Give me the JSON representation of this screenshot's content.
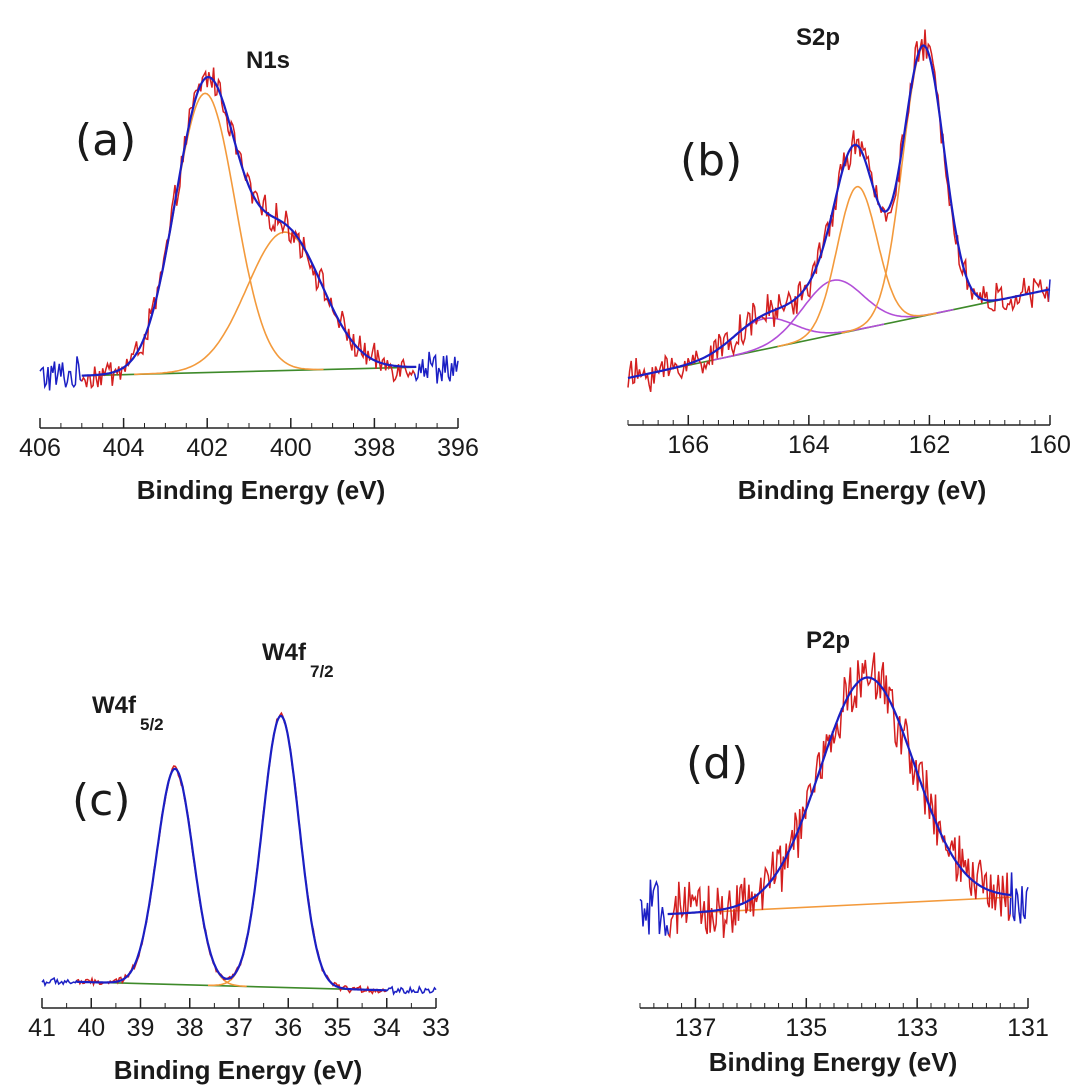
{
  "colors": {
    "data": "#d41f1f",
    "fit": "#1b1fc4",
    "component": "#f39a3c",
    "component_alt": "#b24fd8",
    "background_line": "#3e8a2a",
    "noise_outside": "#1b1fc4"
  },
  "chart_data": [
    {
      "id": "a",
      "type": "line",
      "panel_label": "(a)",
      "title": "N1s",
      "xlabel": "Binding Energy (eV)",
      "xlim": [
        406,
        396
      ],
      "reversed_x": true,
      "ticks": [
        "406",
        "404",
        "402",
        "400",
        "398",
        "396"
      ],
      "tick_values": [
        406,
        404,
        402,
        400,
        398,
        396
      ],
      "fit_range": [
        405,
        397
      ],
      "background": {
        "start": 1.0,
        "end": 1.35
      },
      "components": [
        {
          "center": 402.05,
          "height": 11.5,
          "sigma": 0.72,
          "color": "component"
        },
        {
          "center": 400.15,
          "height": 5.7,
          "sigma": 0.9,
          "color": "component"
        }
      ],
      "noise": 0.55,
      "ylim": [
        0,
        14
      ]
    },
    {
      "id": "b",
      "type": "line",
      "panel_label": "(b)",
      "title": "S2p",
      "xlabel": "Binding Energy (eV)",
      "xlim": [
        167,
        160
      ],
      "reversed_x": true,
      "ticks": [
        "166",
        "164",
        "162",
        "160"
      ],
      "tick_values": [
        166,
        164,
        162,
        160
      ],
      "fit_range": [
        167,
        160
      ],
      "background": {
        "start": 0.0,
        "end": 2.6
      },
      "components": [
        {
          "center": 164.75,
          "height": 0.9,
          "sigma": 0.5,
          "color": "component_alt"
        },
        {
          "center": 163.6,
          "height": 1.6,
          "sigma": 0.5,
          "color": "component_alt"
        },
        {
          "center": 163.2,
          "height": 4.2,
          "sigma": 0.33,
          "color": "component"
        },
        {
          "center": 162.1,
          "height": 7.9,
          "sigma": 0.34,
          "color": "component"
        }
      ],
      "noise": 0.45,
      "ylim": [
        -0.5,
        10.5
      ]
    },
    {
      "id": "c",
      "type": "line",
      "panel_label": "(c)",
      "title": "W4f",
      "peak_labels": [
        {
          "text": "W4f",
          "sub": "5/2"
        },
        {
          "text": "W4f",
          "sub": "7/2"
        }
      ],
      "xlabel": "Binding Energy (eV)",
      "xlim": [
        41,
        33
      ],
      "reversed_x": true,
      "ticks": [
        "41",
        "40",
        "39",
        "38",
        "37",
        "36",
        "35",
        "34",
        "33"
      ],
      "tick_values": [
        41,
        40,
        39,
        38,
        37,
        36,
        35,
        34,
        33
      ],
      "fit_range": [
        40.3,
        34
      ],
      "background": {
        "start": 0.35,
        "end": 0.0
      },
      "components": [
        {
          "center": 38.3,
          "height": 8.9,
          "sigma": 0.37,
          "color": "component"
        },
        {
          "center": 36.15,
          "height": 11.2,
          "sigma": 0.37,
          "color": "component"
        }
      ],
      "noise": 0.12,
      "ylim": [
        -0.4,
        12.8
      ]
    },
    {
      "id": "d",
      "type": "line",
      "panel_label": "(d)",
      "title": "P2p",
      "xlabel": "Binding Energy (eV)",
      "xlim": [
        138,
        131
      ],
      "reversed_x": true,
      "ticks": [
        "137",
        "135",
        "133",
        "131"
      ],
      "tick_values": [
        137,
        135,
        133,
        131
      ],
      "fit_range": [
        137.5,
        131.3
      ],
      "background": {
        "start": 0.3,
        "end": 0.9
      },
      "components": [
        {
          "center": 133.9,
          "height": 8.0,
          "sigma": 0.85,
          "color": "component"
        }
      ],
      "noise": 0.9,
      "ylim": [
        -2.2,
        10.5
      ]
    }
  ]
}
